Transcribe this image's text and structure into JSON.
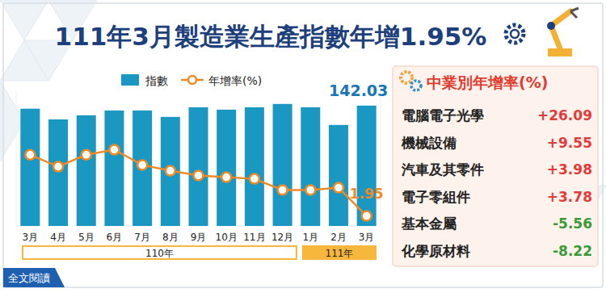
{
  "chart_data": {
    "type": "bar",
    "title": "111年3月製造業生產指數年增1.95%",
    "categories": [
      "3月",
      "4月",
      "5月",
      "6月",
      "7月",
      "8月",
      "9月",
      "10月",
      "11月",
      "12月",
      "1月",
      "2月",
      "3月"
    ],
    "x_groups": [
      {
        "label": "110年",
        "start": 0,
        "end": 9
      },
      {
        "label": "111年",
        "start": 10,
        "end": 12
      }
    ],
    "series": [
      {
        "name": "指數",
        "type": "bar",
        "color": "#1b98c2",
        "values": [
          138.4,
          125.8,
          130.6,
          136.3,
          136.3,
          128.7,
          140.1,
          137.3,
          140.1,
          144.0,
          140.1,
          119.2,
          142.03
        ],
        "value_labels": [
          null,
          null,
          null,
          null,
          null,
          null,
          null,
          null,
          null,
          null,
          null,
          null,
          "142.03"
        ]
      },
      {
        "name": "年增率(%)",
        "type": "line",
        "axis": "y2",
        "color": "#f08a24",
        "marker": "circle",
        "values": [
          20.0,
          16.5,
          20.0,
          21.5,
          17.0,
          15.3,
          13.9,
          13.4,
          12.9,
          9.6,
          9.6,
          10.3,
          1.95
        ],
        "value_labels": [
          null,
          null,
          null,
          null,
          null,
          null,
          null,
          null,
          null,
          null,
          null,
          null,
          "1.95"
        ]
      }
    ],
    "ylim": [
      0,
      160
    ],
    "y2lim": [
      -1,
      39
    ],
    "tick_labels": "x",
    "grid": false,
    "legend": "top"
  },
  "panel": {
    "title": "中業別年增率(%)",
    "rows": [
      {
        "name": "電腦電子光學",
        "value": 26.09,
        "label": "+26.09"
      },
      {
        "name": "機械設備",
        "value": 9.55,
        "label": "+9.55"
      },
      {
        "name": "汽車及其零件",
        "value": 3.98,
        "label": "+3.98"
      },
      {
        "name": "電子零組件",
        "value": 3.78,
        "label": "+3.78"
      },
      {
        "name": "基本金屬",
        "value": -5.56,
        "label": "-5.56"
      },
      {
        "name": "化學原材料",
        "value": -8.22,
        "label": "-8.22"
      }
    ]
  },
  "button": "全文閱讀"
}
